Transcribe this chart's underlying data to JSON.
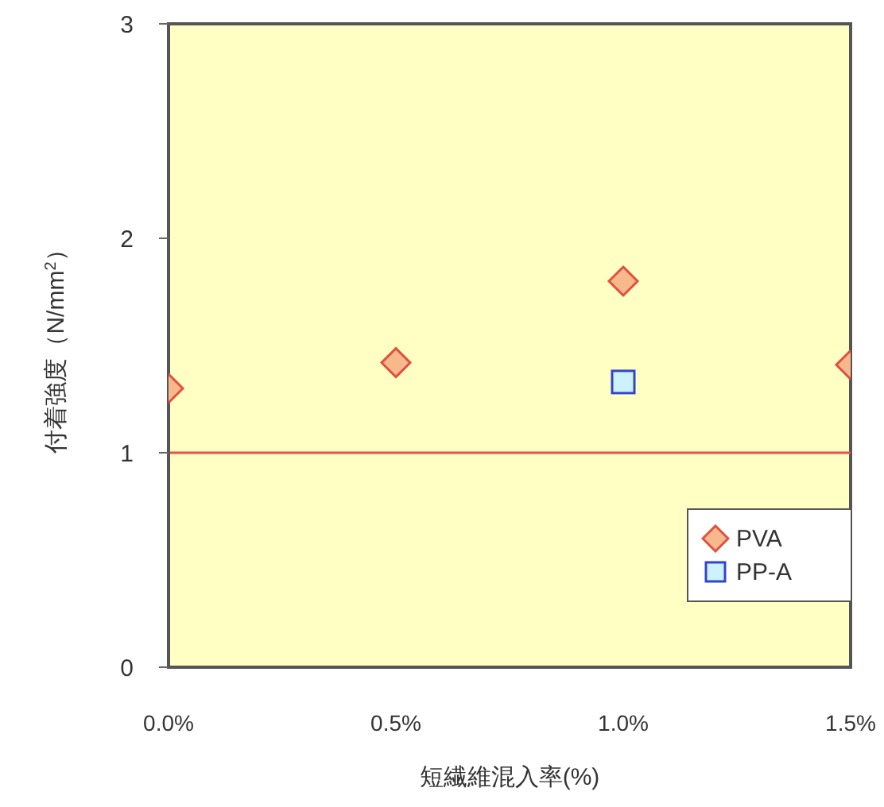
{
  "chart_data": {
    "type": "scatter",
    "xlabel": "短繊維混入率(%)",
    "ylabel": "付着強度（N/mm$^{2}$）",
    "xlim": [
      0,
      1.5
    ],
    "xticks": [
      {
        "value": 0,
        "label": "0.0%"
      },
      {
        "value": 0.5,
        "label": "0.5%"
      },
      {
        "value": 1.0,
        "label": "1.0%"
      },
      {
        "value": 1.5,
        "label": "1.5%"
      }
    ],
    "ylim": [
      0,
      3
    ],
    "yticks": [
      0,
      1,
      2,
      3
    ],
    "legend": "bottom right",
    "series": [
      {
        "name": "PVA",
        "color": "#f7b98c",
        "marker": "diamond",
        "x": [
          0,
          0.5,
          1.0,
          1.5
        ],
        "values": [
          1.3,
          1.42,
          1.8,
          1.41
        ]
      },
      {
        "name": "PP-A",
        "color": "#ccf2ff",
        "marker": "square",
        "x": [
          1.0
        ],
        "values": [
          1.33
        ]
      }
    ],
    "ref_lines": [
      {
        "axis": "y",
        "value": 1,
        "color": "#e8504a"
      }
    ]
  }
}
